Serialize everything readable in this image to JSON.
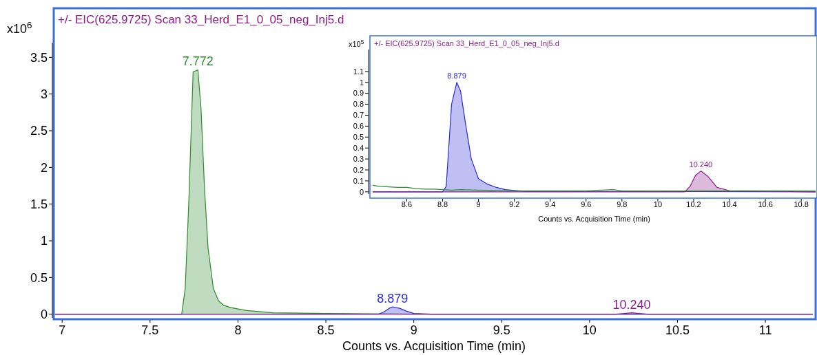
{
  "chart_data": [
    {
      "type": "area",
      "title": "+/- EIC(625.9725) Scan 33_Herd_E1_0_05_neg_Inj5.d",
      "xlabel": "Counts vs. Acquisition Time (min)",
      "ylabel": "x10$^{6}$",
      "xlim": [
        6.96,
        11.27
      ],
      "ylim": [
        -0.05,
        3.7
      ],
      "xticks": [
        7,
        7.5,
        8,
        8.5,
        9,
        9.5,
        10,
        10.5,
        11
      ],
      "yticks": [
        0,
        0.5,
        1,
        1.5,
        2,
        2.5,
        3,
        3.5
      ],
      "series": [
        {
          "color": "#2e8b2e",
          "x": [
            6.96,
            7.6,
            7.68,
            7.7,
            7.72,
            7.745,
            7.772,
            7.79,
            7.81,
            7.83,
            7.86,
            7.89,
            7.92,
            7.96,
            8.05,
            8.2,
            8.5,
            9.0,
            11.27
          ],
          "values": [
            0,
            0,
            0,
            0.35,
            1.5,
            3.3,
            3.33,
            2.8,
            1.7,
            0.9,
            0.35,
            0.18,
            0.12,
            0.09,
            0.05,
            0.02,
            0.01,
            0,
            0
          ]
        },
        {
          "color": "#2b2bd9",
          "x": [
            6.96,
            8.8,
            8.83,
            8.86,
            8.879,
            8.92,
            8.96,
            9.0,
            9.1,
            9.25,
            11.27
          ],
          "values": [
            0,
            0,
            0.03,
            0.08,
            0.1,
            0.08,
            0.04,
            0.01,
            0,
            0,
            0
          ]
        },
        {
          "color": "#8b1a8b",
          "x": [
            6.96,
            10.15,
            10.2,
            10.24,
            10.28,
            10.33,
            10.4,
            11.27
          ],
          "values": [
            0,
            0,
            0.01,
            0.02,
            0.01,
            0,
            0,
            0
          ]
        }
      ],
      "annotations": [
        {
          "text": "7.772",
          "x": 7.772,
          "y": 3.33
        },
        {
          "text": "8.879",
          "x": 8.879,
          "y": 0.1
        },
        {
          "text": "10.240",
          "x": 10.24,
          "y": 0.02
        }
      ]
    },
    {
      "type": "area",
      "title": "+/- EIC(625.9725) Scan 33_Herd_E1_0_05_neg_Inj5.d",
      "xlabel": "Counts vs. Acquisition Time (min)",
      "ylabel": "x10$^{5}$",
      "xlim": [
        8.41,
        10.88
      ],
      "ylim": [
        -0.02,
        1.3
      ],
      "xticks": [
        8.6,
        8.8,
        9,
        9.2,
        9.4,
        9.6,
        9.8,
        10,
        10.2,
        10.4,
        10.6,
        10.8
      ],
      "yticks": [
        0,
        0.1,
        0.2,
        0.3,
        0.4,
        0.5,
        0.6,
        0.7,
        0.8,
        0.9,
        1,
        1.1
      ],
      "series": [
        {
          "type": "line",
          "color": "#2e8b2e",
          "x": [
            8.41,
            8.45,
            8.5,
            8.55,
            8.6,
            8.65,
            8.7,
            8.75,
            8.8,
            8.85,
            8.9,
            9.0,
            9.1,
            9.2,
            9.4,
            9.6,
            9.75,
            9.8,
            10.0,
            10.2,
            10.4,
            10.6,
            10.88
          ],
          "values": [
            0.06,
            0.05,
            0.045,
            0.04,
            0.04,
            0.03,
            0.025,
            0.025,
            0.02,
            0.015,
            0.02,
            0.015,
            0.012,
            0.01,
            0.01,
            0.01,
            0.02,
            0.01,
            0.01,
            0.01,
            0.01,
            0.01,
            0.01
          ]
        },
        {
          "color": "#2b2bd9",
          "x": [
            8.41,
            8.8,
            8.82,
            8.85,
            8.879,
            8.9,
            8.93,
            8.96,
            9.0,
            9.05,
            9.1,
            9.15,
            9.25,
            10.88
          ],
          "values": [
            0,
            0,
            0.05,
            0.8,
            1.0,
            0.92,
            0.6,
            0.3,
            0.12,
            0.07,
            0.04,
            0.02,
            0.005,
            0
          ]
        },
        {
          "color": "#8b1a8b",
          "x": [
            8.41,
            10.15,
            10.18,
            10.21,
            10.24,
            10.28,
            10.3,
            10.33,
            10.4,
            10.88
          ],
          "values": [
            0,
            0,
            0.05,
            0.15,
            0.19,
            0.14,
            0.1,
            0.04,
            0.01,
            0
          ]
        }
      ],
      "annotations": [
        {
          "text": "8.879",
          "x": 8.879,
          "y": 1.0
        },
        {
          "text": "10.240",
          "x": 10.24,
          "y": 0.19
        }
      ]
    }
  ]
}
